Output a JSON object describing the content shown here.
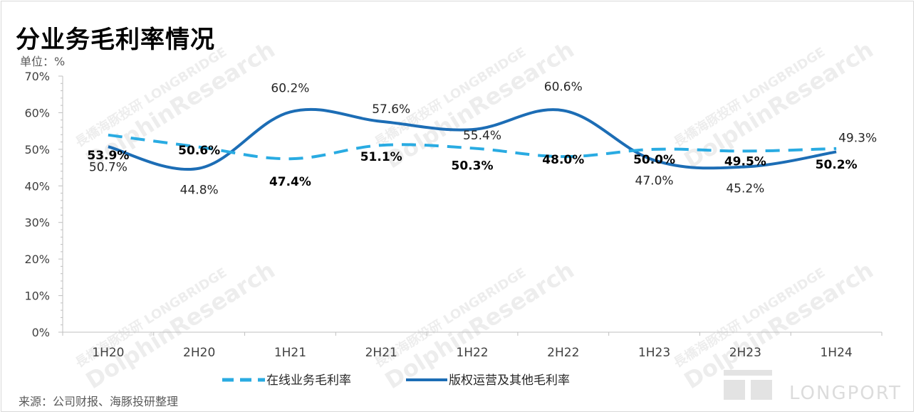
{
  "title": "分业务毛利率情况",
  "unit_label": "单位：%",
  "source": "来源：公司财报、海豚投研整理",
  "logo_text": "LONGPORT",
  "watermark": {
    "cn": "長橋海豚投研",
    "en_top": "LONGBRIDGE",
    "en": "DolphinResearch"
  },
  "colors": {
    "online": "#29ABE2",
    "copyright": "#1C6DB5"
  },
  "chart_data": {
    "type": "line",
    "categories": [
      "1H20",
      "2H20",
      "1H21",
      "2H21",
      "1H22",
      "2H22",
      "1H23",
      "2H23",
      "1H24"
    ],
    "ylim": [
      0,
      70
    ],
    "yticks": [
      "0%",
      "10%",
      "20%",
      "30%",
      "40%",
      "50%",
      "60%",
      "70%"
    ],
    "grid": false,
    "legend": "bottom",
    "series": [
      {
        "name": "在线业务毛利率",
        "style": "dashed",
        "values": [
          53.9,
          50.6,
          47.4,
          51.1,
          50.3,
          48.0,
          50.0,
          49.5,
          50.2
        ],
        "labels": [
          "53.9%",
          "50.6%",
          "47.4%",
          "51.1%",
          "50.3%",
          "48.0%",
          "50.0%",
          "49.5%",
          "50.2%"
        ]
      },
      {
        "name": "版权运营及其他毛利率",
        "style": "solid",
        "values": [
          50.7,
          44.8,
          60.2,
          57.6,
          55.4,
          60.6,
          47.0,
          45.2,
          49.3
        ],
        "labels": [
          "50.7%",
          "44.8%",
          "60.2%",
          "57.6%",
          "55.4%",
          "60.6%",
          "47.0%",
          "45.2%",
          "49.3%"
        ]
      }
    ]
  }
}
